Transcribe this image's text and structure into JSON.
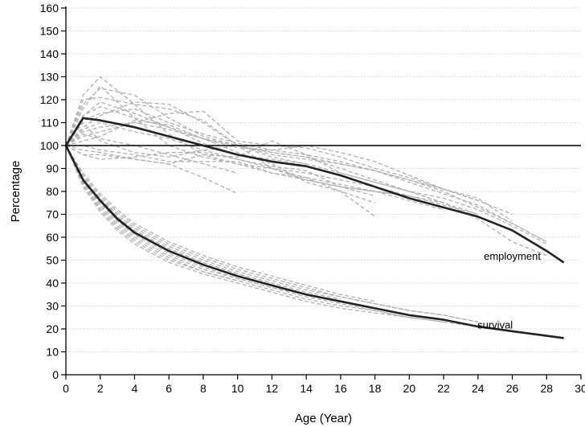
{
  "chart_data": {
    "type": "line",
    "title": "",
    "xlabel": "Age (Year)",
    "ylabel": "Percentage",
    "xlim": [
      0,
      30
    ],
    "ylim": [
      0,
      160
    ],
    "x_ticks": [
      0,
      2,
      4,
      6,
      8,
      10,
      12,
      14,
      16,
      18,
      20,
      22,
      24,
      26,
      28,
      30
    ],
    "y_ticks": [
      0,
      10,
      20,
      30,
      40,
      50,
      60,
      70,
      80,
      90,
      100,
      110,
      120,
      130,
      140,
      150,
      160
    ],
    "grid": "horizontal dotted",
    "legend": "none",
    "reference_line": 100,
    "colors": {
      "main": "#222222",
      "background": "#b0b0b0",
      "reference": "#000000",
      "grid": "#c8c8c8"
    },
    "annotations": [
      {
        "text": "employment",
        "x": 26,
        "y": 52
      },
      {
        "text": "survival",
        "x": 25,
        "y": 22
      }
    ],
    "series": [
      {
        "name": "employment",
        "x": [
          0,
          1,
          2,
          4,
          6,
          8,
          10,
          12,
          14,
          16,
          18,
          20,
          22,
          24,
          26,
          28,
          29
        ],
        "values": [
          100,
          112,
          111,
          108,
          104,
          100,
          96,
          93,
          91,
          87,
          82,
          77,
          73,
          69,
          63,
          54,
          49
        ]
      },
      {
        "name": "survival",
        "x": [
          0,
          1,
          2,
          3,
          4,
          6,
          8,
          10,
          12,
          14,
          16,
          18,
          20,
          22,
          24,
          26,
          28,
          29
        ],
        "values": [
          100,
          85,
          76,
          68,
          62,
          54,
          48,
          43,
          39,
          35,
          32,
          29,
          26,
          24,
          21,
          19,
          17,
          16
        ]
      }
    ],
    "background_series": [
      {
        "x": [
          0,
          1,
          2,
          4,
          6,
          8,
          10,
          12,
          14,
          16,
          18,
          20,
          22,
          24,
          26,
          28
        ],
        "values": [
          100,
          122,
          130,
          118,
          105,
          96,
          92,
          88,
          85,
          82,
          80,
          78,
          75,
          68,
          58,
          52
        ]
      },
      {
        "x": [
          0,
          1,
          2,
          4,
          6,
          8,
          10,
          12,
          14,
          16,
          18,
          20,
          22,
          24,
          26,
          28
        ],
        "values": [
          100,
          118,
          125,
          122,
          112,
          104,
          100,
          95,
          92,
          88,
          84,
          80,
          77,
          72,
          65,
          57
        ]
      },
      {
        "x": [
          0,
          1,
          2,
          4,
          6,
          8,
          10,
          12,
          14,
          16,
          18,
          20,
          22,
          24,
          26,
          28
        ],
        "values": [
          100,
          108,
          113,
          119,
          118,
          110,
          100,
          96,
          94,
          92,
          89,
          85,
          80,
          73,
          66,
          58
        ]
      },
      {
        "x": [
          0,
          1,
          2,
          4,
          6,
          8,
          10,
          12,
          14,
          16,
          18,
          20,
          22,
          24,
          26
        ],
        "values": [
          100,
          104,
          106,
          110,
          114,
          115,
          102,
          100,
          99,
          95,
          90,
          86,
          81,
          77,
          67
        ]
      },
      {
        "x": [
          0,
          1,
          2,
          4,
          6,
          8,
          10,
          12,
          14,
          16,
          18,
          20,
          22,
          24
        ],
        "values": [
          100,
          113,
          117,
          112,
          108,
          103,
          99,
          98,
          100,
          97,
          93,
          87,
          81,
          76
        ]
      },
      {
        "x": [
          0,
          1,
          2,
          4,
          6,
          8,
          10,
          12,
          14,
          16,
          18,
          20,
          22
        ],
        "values": [
          100,
          96,
          96,
          94,
          92,
          96,
          95,
          102,
          96,
          88,
          84,
          80,
          75
        ]
      },
      {
        "x": [
          0,
          1,
          2,
          4,
          6,
          8,
          10,
          12,
          14,
          16,
          18,
          20,
          22,
          24
        ],
        "values": [
          100,
          110,
          102,
          97,
          95,
          98,
          100,
          97,
          95,
          90,
          85,
          80,
          75,
          70
        ]
      },
      {
        "x": [
          0,
          1,
          2,
          4,
          6,
          8,
          10,
          12,
          14,
          16,
          18,
          20,
          22,
          24
        ],
        "values": [
          100,
          120,
          121,
          118,
          116,
          111,
          100,
          90,
          85,
          82,
          80,
          78,
          74,
          70
        ]
      },
      {
        "x": [
          0,
          1,
          2,
          4,
          6,
          8,
          10,
          12,
          14,
          16,
          18,
          20,
          22
        ],
        "values": [
          100,
          100,
          98,
          96,
          93,
          93,
          93,
          88,
          86,
          83,
          80,
          76,
          72
        ]
      },
      {
        "x": [
          0,
          1,
          2,
          4,
          6,
          8,
          10,
          12,
          14,
          16,
          18,
          20
        ],
        "values": [
          100,
          116,
          126,
          112,
          100,
          95,
          92,
          90,
          88,
          85,
          82,
          78
        ]
      },
      {
        "x": [
          0,
          1,
          2,
          4,
          6,
          8,
          10,
          12,
          14,
          16,
          18
        ],
        "values": [
          100,
          107,
          110,
          106,
          103,
          98,
          94,
          91,
          89,
          82,
          78
        ]
      },
      {
        "x": [
          0,
          1,
          2,
          4,
          6,
          8,
          10,
          12,
          14,
          16,
          18
        ],
        "values": [
          100,
          102,
          104,
          111,
          109,
          103,
          97,
          92,
          84,
          80,
          75
        ]
      },
      {
        "x": [
          0,
          1,
          2,
          4,
          6,
          8,
          10
        ],
        "values": [
          100,
          98,
          97,
          94,
          92,
          86,
          79
        ]
      },
      {
        "x": [
          0,
          1,
          2,
          4,
          6,
          8,
          10
        ],
        "values": [
          100,
          105,
          103,
          100,
          96,
          92,
          88
        ]
      },
      {
        "x": [
          0,
          1,
          2,
          4,
          6,
          8,
          10,
          12,
          14
        ],
        "values": [
          100,
          113,
          119,
          114,
          108,
          101,
          96,
          94,
          92
        ]
      },
      {
        "x": [
          0,
          1,
          2,
          4,
          6,
          8,
          10,
          12,
          14,
          16,
          18
        ],
        "values": [
          100,
          96,
          94,
          95,
          97,
          97,
          94,
          90,
          86,
          80,
          69
        ]
      },
      {
        "x": [
          0,
          1,
          2,
          4,
          6,
          8,
          10,
          12,
          14,
          16,
          18,
          20,
          22,
          24,
          26
        ],
        "values": [
          100,
          111,
          114,
          116,
          110,
          105,
          101,
          98,
          96,
          93,
          89,
          85,
          81,
          76,
          70
        ]
      },
      {
        "x": [
          0,
          1,
          2,
          4,
          6,
          8,
          10,
          12,
          14,
          16,
          18,
          20,
          22,
          24,
          26,
          28
        ],
        "values": [
          100,
          106,
          108,
          110,
          107,
          103,
          100,
          97,
          95,
          92,
          89,
          84,
          79,
          74,
          66,
          58
        ]
      },
      {
        "x": [
          0,
          1,
          2,
          3,
          4,
          6,
          8,
          10,
          12,
          14,
          16,
          18,
          20,
          22,
          24
        ],
        "values": [
          100,
          86,
          77,
          70,
          64,
          56,
          50,
          45,
          41,
          37,
          34,
          31,
          28,
          26,
          23
        ]
      },
      {
        "x": [
          0,
          1,
          2,
          3,
          4,
          6,
          8,
          10,
          12,
          14,
          16,
          18,
          20,
          22,
          24
        ],
        "values": [
          100,
          84,
          75,
          67,
          61,
          53,
          47,
          42,
          38,
          34,
          31,
          28,
          25,
          23,
          21
        ]
      },
      {
        "x": [
          0,
          1,
          2,
          3,
          4,
          6,
          8,
          10,
          12,
          14,
          16,
          18,
          20,
          22,
          24
        ],
        "values": [
          100,
          87,
          78,
          71,
          65,
          57,
          51,
          46,
          42,
          38,
          34,
          31,
          28,
          26,
          23
        ]
      },
      {
        "x": [
          0,
          1,
          2,
          3,
          4,
          6,
          8,
          10,
          12,
          14,
          16,
          18,
          20,
          22
        ],
        "values": [
          100,
          83,
          73,
          65,
          59,
          51,
          45,
          41,
          37,
          33,
          30,
          28,
          25,
          23
        ]
      },
      {
        "x": [
          0,
          1,
          2,
          3,
          4,
          6,
          8,
          10,
          12,
          14,
          16,
          18,
          20
        ],
        "values": [
          100,
          82,
          71,
          63,
          57,
          49,
          44,
          40,
          36,
          32,
          29,
          27,
          25
        ]
      },
      {
        "x": [
          0,
          1,
          2,
          3,
          4,
          6,
          8,
          10,
          12,
          14,
          16,
          18
        ],
        "values": [
          100,
          88,
          79,
          72,
          66,
          58,
          52,
          47,
          43,
          39,
          35,
          32
        ]
      },
      {
        "x": [
          0,
          1,
          2,
          3,
          4,
          6,
          8,
          10,
          12,
          14,
          16
        ],
        "values": [
          100,
          85,
          76,
          69,
          63,
          55,
          49,
          44,
          40,
          36,
          33
        ]
      },
      {
        "x": [
          0,
          1,
          2,
          3,
          4,
          6,
          8,
          10,
          12,
          14
        ],
        "values": [
          100,
          84,
          74,
          66,
          60,
          52,
          46,
          42,
          38,
          35
        ]
      },
      {
        "x": [
          0,
          1,
          2,
          3,
          4,
          6,
          8,
          10,
          12
        ],
        "values": [
          100,
          86,
          77,
          69,
          63,
          55,
          49,
          44,
          40
        ]
      },
      {
        "x": [
          0,
          1,
          2,
          3,
          4,
          6,
          8,
          10
        ],
        "values": [
          100,
          83,
          72,
          64,
          58,
          50,
          45,
          41
        ]
      }
    ]
  }
}
